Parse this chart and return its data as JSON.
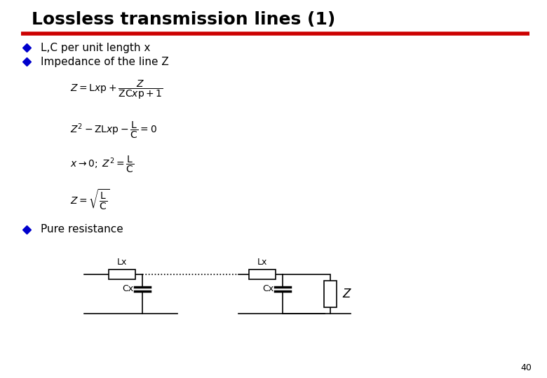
{
  "title": "Lossless transmission lines (1)",
  "title_color": "#000000",
  "title_fontsize": 18,
  "red_line_color": "#cc0000",
  "bullet_color": "#0000cc",
  "bullet1": "L,C per unit length x",
  "bullet2": "Impedance of the line Z",
  "bullet3": "Pure resistance",
  "background_color": "#ffffff",
  "page_number": "40",
  "text_fontsize": 11,
  "eq_fontsize": 10,
  "circuit": {
    "lx_label": "Lx",
    "cx_label": "Cx",
    "z_label": "Z"
  }
}
